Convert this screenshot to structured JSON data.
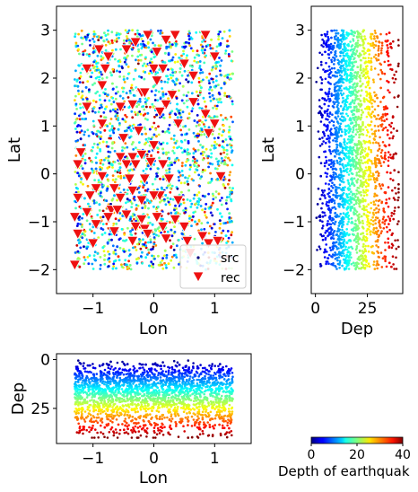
{
  "colormap": "jet",
  "colors": {
    "receiver_fill": "#ee1111",
    "receiver_edge": "#ffffff",
    "axes_edge": "#000000"
  },
  "chart_data": [
    {
      "type": "scatter",
      "panel": "map",
      "xlabel": "Lon",
      "ylabel": "Lat",
      "xlim": [
        -1.6,
        1.6
      ],
      "ylim": [
        -2.5,
        3.5
      ],
      "xticks": [
        "−1",
        "0",
        "1"
      ],
      "yticks": [
        "−2",
        "−1",
        "0",
        "1",
        "2",
        "3"
      ],
      "legend": {
        "placement": "lower-right",
        "entries": [
          "src",
          "rec"
        ]
      },
      "source_extent": {
        "lon": [
          -1.3,
          1.3
        ],
        "lat": [
          -2.0,
          3.0
        ],
        "depth": [
          0,
          40
        ]
      },
      "receivers": [
        {
          "lon": -0.9,
          "lat": 2.6
        },
        {
          "lon": -0.75,
          "lat": 2.45
        },
        {
          "lon": -0.45,
          "lat": 2.6
        },
        {
          "lon": -0.3,
          "lat": 2.75
        },
        {
          "lon": -0.1,
          "lat": 2.9
        },
        {
          "lon": 0.05,
          "lat": 2.55
        },
        {
          "lon": 0.2,
          "lat": 2.8
        },
        {
          "lon": 0.35,
          "lat": 2.9
        },
        {
          "lon": 0.85,
          "lat": 2.9
        },
        {
          "lon": 1.0,
          "lat": 2.45
        },
        {
          "lon": -1.1,
          "lat": 2.2
        },
        {
          "lon": -0.8,
          "lat": 2.2
        },
        {
          "lon": 0.0,
          "lat": 2.2
        },
        {
          "lon": 0.15,
          "lat": 2.2
        },
        {
          "lon": 0.5,
          "lat": 2.3
        },
        {
          "lon": 0.65,
          "lat": 2.05
        },
        {
          "lon": -0.85,
          "lat": 1.85
        },
        {
          "lon": 0.05,
          "lat": 1.95
        },
        {
          "lon": -0.2,
          "lat": 1.7
        },
        {
          "lon": -0.15,
          "lat": 1.7
        },
        {
          "lon": 0.3,
          "lat": 1.65
        },
        {
          "lon": 0.65,
          "lat": 1.5
        },
        {
          "lon": -1.1,
          "lat": 1.4
        },
        {
          "lon": -0.55,
          "lat": 1.4
        },
        {
          "lon": -0.35,
          "lat": 1.45
        },
        {
          "lon": 0.2,
          "lat": 1.45
        },
        {
          "lon": 0.1,
          "lat": 1.3
        },
        {
          "lon": 0.4,
          "lat": 1.05
        },
        {
          "lon": 0.85,
          "lat": 1.25
        },
        {
          "lon": 1.0,
          "lat": 1.05
        },
        {
          "lon": -0.85,
          "lat": 1.05
        },
        {
          "lon": 0.9,
          "lat": 0.85
        },
        {
          "lon": -0.25,
          "lat": 0.9
        },
        {
          "lon": -0.5,
          "lat": 0.75
        },
        {
          "lon": 0.0,
          "lat": 0.6
        },
        {
          "lon": -1.2,
          "lat": 0.45
        },
        {
          "lon": -0.55,
          "lat": 0.35
        },
        {
          "lon": -0.35,
          "lat": 0.35
        },
        {
          "lon": -0.2,
          "lat": 0.4
        },
        {
          "lon": -0.45,
          "lat": 0.2
        },
        {
          "lon": -0.3,
          "lat": 0.2
        },
        {
          "lon": -0.05,
          "lat": 0.25
        },
        {
          "lon": 0.15,
          "lat": 0.2
        },
        {
          "lon": -1.25,
          "lat": 0.2
        },
        {
          "lon": -1.1,
          "lat": -0.05
        },
        {
          "lon": -0.85,
          "lat": -0.05
        },
        {
          "lon": -0.4,
          "lat": -0.1
        },
        {
          "lon": -0.15,
          "lat": -0.1
        },
        {
          "lon": 0.25,
          "lat": -0.1
        },
        {
          "lon": 1.1,
          "lat": -0.05
        },
        {
          "lon": -0.95,
          "lat": -0.3
        },
        {
          "lon": -0.65,
          "lat": -0.3
        },
        {
          "lon": -0.35,
          "lat": -0.35
        },
        {
          "lon": 0.1,
          "lat": -0.45
        },
        {
          "lon": -1.25,
          "lat": -0.5
        },
        {
          "lon": -1.05,
          "lat": -0.45
        },
        {
          "lon": -0.55,
          "lat": -0.5
        },
        {
          "lon": -0.2,
          "lat": -0.55
        },
        {
          "lon": 0.0,
          "lat": -0.45
        },
        {
          "lon": 0.4,
          "lat": -0.55
        },
        {
          "lon": -1.3,
          "lat": -0.9
        },
        {
          "lon": -1.1,
          "lat": -0.8
        },
        {
          "lon": -0.7,
          "lat": -0.75
        },
        {
          "lon": -0.6,
          "lat": -0.75
        },
        {
          "lon": -0.45,
          "lat": -0.85
        },
        {
          "lon": -0.2,
          "lat": -0.95
        },
        {
          "lon": 0.05,
          "lat": -0.9
        },
        {
          "lon": 0.35,
          "lat": -0.95
        },
        {
          "lon": -0.95,
          "lat": -1.05
        },
        {
          "lon": -0.75,
          "lat": -0.9
        },
        {
          "lon": -0.3,
          "lat": -1.1
        },
        {
          "lon": -0.15,
          "lat": -1.15
        },
        {
          "lon": 0.15,
          "lat": -1.1
        },
        {
          "lon": 0.5,
          "lat": -1.1
        },
        {
          "lon": -1.25,
          "lat": -1.25
        },
        {
          "lon": -0.65,
          "lat": -1.2
        },
        {
          "lon": -0.1,
          "lat": -1.25
        },
        {
          "lon": 0.2,
          "lat": -1.35
        },
        {
          "lon": 0.55,
          "lat": -1.4
        },
        {
          "lon": 0.8,
          "lat": -1.3
        },
        {
          "lon": 0.9,
          "lat": -1.45
        },
        {
          "lon": -1.0,
          "lat": -1.45
        },
        {
          "lon": -0.35,
          "lat": -1.4
        },
        {
          "lon": 1.05,
          "lat": -1.4
        },
        {
          "lon": 0.6,
          "lat": -1.65
        },
        {
          "lon": -1.3,
          "lat": -1.9
        }
      ]
    },
    {
      "type": "scatter",
      "panel": "depth-vs-lat",
      "xlabel": "Dep",
      "ylabel": "Lat",
      "xlim": [
        -2,
        42
      ],
      "ylim": [
        -2.5,
        3.5
      ],
      "xticks": [
        "0",
        "25"
      ],
      "yticks": [
        "−2",
        "−1",
        "0",
        "1",
        "2",
        "3"
      ]
    },
    {
      "type": "scatter",
      "panel": "lon-vs-depth",
      "xlabel": "Lon",
      "ylabel": "Dep",
      "xlim": [
        -1.6,
        1.6
      ],
      "ylim": [
        43,
        -3
      ],
      "xticks": [
        "−1",
        "0",
        "1"
      ],
      "yticks": [
        "0",
        "25"
      ]
    },
    {
      "type": "colorbar",
      "label": "Depth of earthquak",
      "range": [
        0,
        40
      ],
      "ticks": [
        "0",
        "20",
        "40"
      ]
    }
  ]
}
